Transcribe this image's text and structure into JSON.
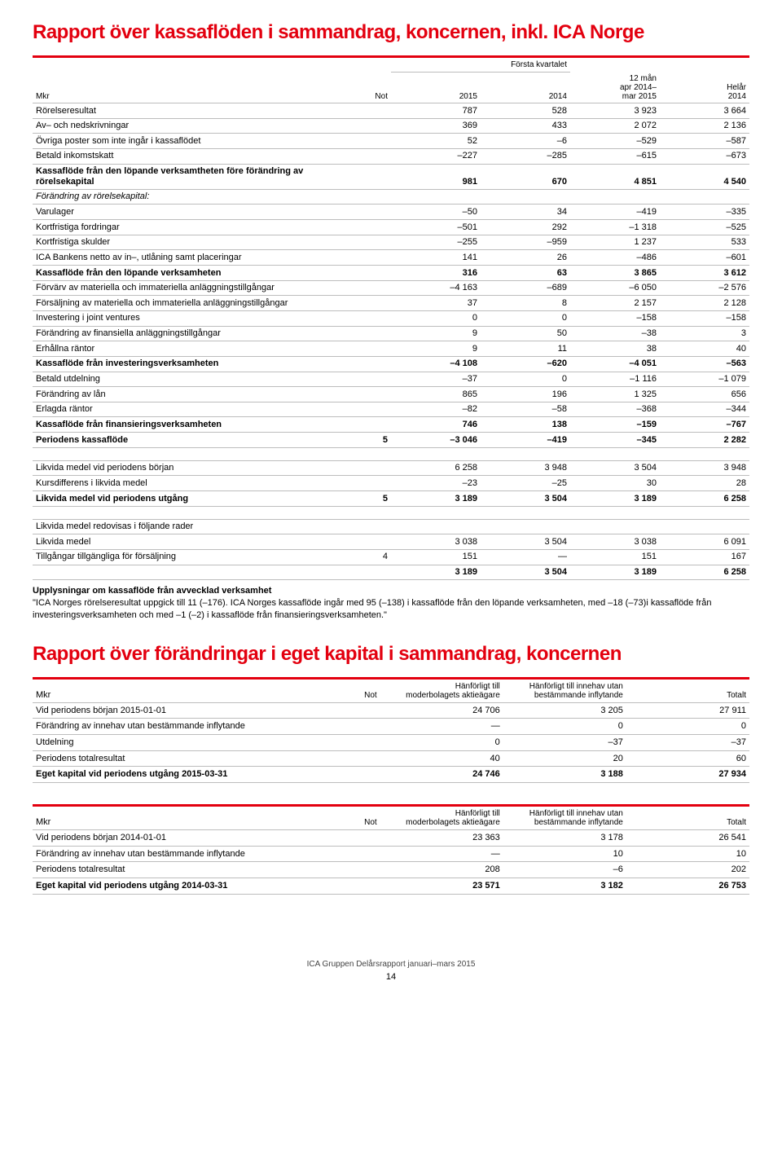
{
  "title1": "Rapport över kassaflöden i sammandrag, koncernen, inkl. ICA Norge",
  "cf": {
    "head": {
      "mkr": "Mkr",
      "not": "Not",
      "grp": "Första kvartalet",
      "c1": "2015",
      "c2": "2014",
      "c3": "12 mån\napr 2014–\nmar 2015",
      "c4": "Helår\n2014"
    },
    "rows": [
      {
        "l": "Rörelseresultat",
        "v": [
          "787",
          "528",
          "3 923",
          "3 664"
        ]
      },
      {
        "l": "Av– och nedskrivningar",
        "v": [
          "369",
          "433",
          "2 072",
          "2 136"
        ]
      },
      {
        "l": "Övriga poster som inte ingår i kassaflödet",
        "v": [
          "52",
          "–6",
          "–529",
          "–587"
        ]
      },
      {
        "l": "Betald inkomstskatt",
        "v": [
          "–227",
          "–285",
          "–615",
          "–673"
        ]
      },
      {
        "l": "Kassaflöde från den löpande verksamtheten före förändring av rörelsekapital",
        "b": true,
        "v": [
          "981",
          "670",
          "4 851",
          "4 540"
        ]
      },
      {
        "l": "Förändring av rörelsekapital:",
        "i": true,
        "v": [
          "",
          "",
          "",
          ""
        ]
      },
      {
        "l": "Varulager",
        "v": [
          "–50",
          "34",
          "–419",
          "–335"
        ]
      },
      {
        "l": "Kortfristiga fordringar",
        "v": [
          "–501",
          "292",
          "–1 318",
          "–525"
        ]
      },
      {
        "l": "Kortfristiga skulder",
        "v": [
          "–255",
          "–959",
          "1 237",
          "533"
        ]
      },
      {
        "l": "ICA Bankens netto av in–, utlåning samt placeringar",
        "v": [
          "141",
          "26",
          "–486",
          "–601"
        ]
      },
      {
        "l": "Kassaflöde från den löpande verksamheten",
        "b": true,
        "v": [
          "316",
          "63",
          "3 865",
          "3 612"
        ]
      },
      {
        "l": "Förvärv av materiella och immateriella anläggningstillgångar",
        "v": [
          "–4 163",
          "–689",
          "–6 050",
          "–2 576"
        ]
      },
      {
        "l": "Försäljning av materiella och immateriella anläggningstillgångar",
        "v": [
          "37",
          "8",
          "2 157",
          "2 128"
        ]
      },
      {
        "l": "Investering i joint ventures",
        "v": [
          "0",
          "0",
          "–158",
          "–158"
        ]
      },
      {
        "l": "Förändring av finansiella anläggningstillgångar",
        "v": [
          "9",
          "50",
          "–38",
          "3"
        ]
      },
      {
        "l": "Erhållna räntor",
        "v": [
          "9",
          "11",
          "38",
          "40"
        ]
      },
      {
        "l": "Kassaflöde från investeringsverksamheten",
        "b": true,
        "v": [
          "–4 108",
          "–620",
          "–4 051",
          "–563"
        ]
      },
      {
        "l": "Betald utdelning",
        "v": [
          "–37",
          "0",
          "–1 116",
          "–1 079"
        ]
      },
      {
        "l": "Förändring av lån",
        "v": [
          "865",
          "196",
          "1 325",
          "656"
        ]
      },
      {
        "l": "Erlagda räntor",
        "v": [
          "–82",
          "–58",
          "–368",
          "–344"
        ]
      },
      {
        "l": "Kassaflöde från finansieringsverksamheten",
        "b": true,
        "v": [
          "746",
          "138",
          "–159",
          "–767"
        ]
      },
      {
        "l": "Periodens kassaflöde",
        "b": true,
        "not": "5",
        "v": [
          "–3 046",
          "–419",
          "–345",
          "2 282"
        ]
      }
    ],
    "sec2": [
      {
        "l": "Likvida medel vid periodens början",
        "v": [
          "6 258",
          "3 948",
          "3 504",
          "3 948"
        ]
      },
      {
        "l": "Kursdifferens i likvida medel",
        "v": [
          "–23",
          "–25",
          "30",
          "28"
        ]
      },
      {
        "l": "Likvida medel vid periodens utgång",
        "b": true,
        "not": "5",
        "v": [
          "3 189",
          "3 504",
          "3 189",
          "6 258"
        ]
      }
    ],
    "sec3": [
      {
        "l": "Likvida medel redovisas i följande rader",
        "v": [
          "",
          "",
          "",
          ""
        ]
      },
      {
        "l": "Likvida medel",
        "v": [
          "3 038",
          "3 504",
          "3 038",
          "6 091"
        ]
      },
      {
        "l": "Tillgångar tillgängliga för försäljning",
        "not": "4",
        "v": [
          "151",
          "—",
          "151",
          "167"
        ]
      },
      {
        "l": "",
        "b": true,
        "v": [
          "3 189",
          "3 504",
          "3 189",
          "6 258"
        ]
      }
    ]
  },
  "note_h": "Upplysningar om kassaflöde från avvecklad verksamhet",
  "note_t": "\"ICA Norges rörelseresultat uppgick till 11 (–176). ICA Norges kassaflöde ingår med 95  (–138) i kassaflöde från den löpande verksamheten, med –18 (–73)i kassaflöde från investeringsverksamheten och med –1  (–2) i kassaflöde från finansieringsverksamheten.\"",
  "title2": "Rapport över förändringar i eget kapital i sammandrag, koncernen",
  "eq": {
    "head": {
      "mkr": "Mkr",
      "not": "Not",
      "c1": "Hänförligt till\nmoderbolagets aktieägare",
      "c2": "Hänförligt till innehav utan\nbestämmande inflytande",
      "c3": "Totalt"
    },
    "t1": [
      {
        "l": "Vid periodens början 2015-01-01",
        "v": [
          "24 706",
          "3 205",
          "27 911"
        ]
      },
      {
        "l": "Förändring av innehav utan bestämmande inflytande",
        "v": [
          "—",
          "0",
          "0"
        ]
      },
      {
        "l": "Utdelning",
        "v": [
          "0",
          "–37",
          "–37"
        ]
      },
      {
        "l": "Periodens totalresultat",
        "v": [
          "40",
          "20",
          "60"
        ]
      },
      {
        "l": "Eget kapital vid periodens utgång 2015-03-31",
        "b": true,
        "v": [
          "24 746",
          "3 188",
          "27 934"
        ]
      }
    ],
    "t2": [
      {
        "l": "Vid periodens början 2014-01-01",
        "v": [
          "23 363",
          "3 178",
          "26 541"
        ]
      },
      {
        "l": "Förändring av innehav utan bestämmande inflytande",
        "v": [
          "—",
          "10",
          "10"
        ]
      },
      {
        "l": "Periodens totalresultat",
        "v": [
          "208",
          "–6",
          "202"
        ]
      },
      {
        "l": "Eget kapital vid periodens utgång 2014-03-31",
        "b": true,
        "v": [
          "23 571",
          "3 182",
          "26 753"
        ]
      }
    ]
  },
  "footer": "ICA Gruppen Delårsrapport januari–mars 2015",
  "page": "14"
}
